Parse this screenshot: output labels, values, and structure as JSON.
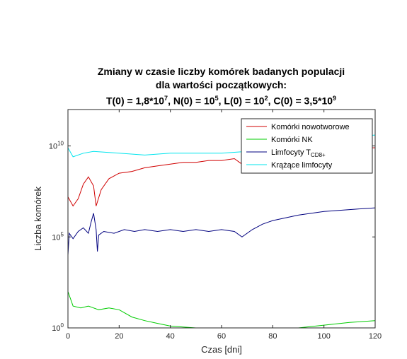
{
  "title": {
    "line1": "Zmiany w czasie liczby komórek badanych populacji",
    "line2": "dla wartości początkowych:",
    "line3": {
      "t_prefix": "T(0) = 1,8*10",
      "t_exp": "7",
      "n_prefix": ", N(0) = 10",
      "n_exp": "5",
      "l_prefix": ", L(0) = 10",
      "l_exp": "2",
      "c_prefix": ", C(0) = 3,5*10",
      "c_exp": "9"
    }
  },
  "chart_data": {
    "type": "line",
    "xlabel": "Czas [dni]",
    "ylabel": "Liczba komórek",
    "xlim": [
      0,
      120
    ],
    "ylim_log10": [
      0,
      12
    ],
    "yscale": "log",
    "xticks": [
      0,
      20,
      40,
      60,
      80,
      100,
      120
    ],
    "yticks": [
      {
        "base": "10",
        "exp": "0",
        "log10": 0
      },
      {
        "base": "10",
        "exp": "5",
        "log10": 5
      },
      {
        "base": "10",
        "exp": "10",
        "log10": 10
      }
    ],
    "legend_position": "top-right",
    "series": [
      {
        "name": "Komórki nowotworowe",
        "color": "#d00000",
        "log10_points": [
          [
            0,
            7.2
          ],
          [
            2,
            6.7
          ],
          [
            4,
            7.1
          ],
          [
            6,
            7.9
          ],
          [
            8,
            8.3
          ],
          [
            10,
            7.8
          ],
          [
            11,
            6.7
          ],
          [
            13,
            7.6
          ],
          [
            16,
            8.2
          ],
          [
            20,
            8.5
          ],
          [
            25,
            8.6
          ],
          [
            30,
            8.8
          ],
          [
            35,
            8.9
          ],
          [
            40,
            9.0
          ],
          [
            45,
            9.1
          ],
          [
            50,
            9.1
          ],
          [
            55,
            9.2
          ],
          [
            60,
            9.2
          ],
          [
            65,
            9.3
          ],
          [
            68,
            9.0
          ],
          [
            72,
            9.5
          ],
          [
            76,
            9.8
          ],
          [
            80,
            9.9
          ],
          [
            90,
            9.9
          ],
          [
            100,
            9.9
          ],
          [
            110,
            9.9
          ],
          [
            120,
            9.9
          ]
        ]
      },
      {
        "name": "Komórki NK",
        "color": "#00cc00",
        "log10_points": [
          [
            0,
            2.0
          ],
          [
            2,
            1.2
          ],
          [
            5,
            1.1
          ],
          [
            8,
            1.2
          ],
          [
            12,
            1.0
          ],
          [
            16,
            1.1
          ],
          [
            20,
            1.0
          ],
          [
            25,
            0.6
          ],
          [
            30,
            0.4
          ],
          [
            35,
            0.25
          ],
          [
            40,
            0.1
          ],
          [
            45,
            0.05
          ],
          [
            50,
            0.0
          ],
          [
            60,
            -0.1
          ],
          [
            70,
            -0.1
          ],
          [
            80,
            -0.1
          ],
          [
            90,
            0.0
          ],
          [
            100,
            0.15
          ],
          [
            110,
            0.3
          ],
          [
            120,
            0.4
          ]
        ]
      },
      {
        "name": "Limfocyty T",
        "name_sub": "CD8+",
        "color": "#00007f",
        "log10_points": [
          [
            0,
            4.0
          ],
          [
            0.5,
            5.2
          ],
          [
            2,
            4.9
          ],
          [
            4,
            5.3
          ],
          [
            6,
            5.5
          ],
          [
            8,
            5.2
          ],
          [
            9,
            5.8
          ],
          [
            10,
            6.3
          ],
          [
            11,
            5.4
          ],
          [
            11.5,
            4.2
          ],
          [
            12,
            5.1
          ],
          [
            14,
            5.3
          ],
          [
            18,
            5.2
          ],
          [
            22,
            5.4
          ],
          [
            26,
            5.3
          ],
          [
            30,
            5.4
          ],
          [
            35,
            5.3
          ],
          [
            40,
            5.4
          ],
          [
            45,
            5.3
          ],
          [
            50,
            5.4
          ],
          [
            55,
            5.3
          ],
          [
            60,
            5.4
          ],
          [
            65,
            5.3
          ],
          [
            68,
            5.0
          ],
          [
            72,
            5.4
          ],
          [
            76,
            5.7
          ],
          [
            80,
            5.9
          ],
          [
            90,
            6.2
          ],
          [
            100,
            6.4
          ],
          [
            110,
            6.5
          ],
          [
            120,
            6.6
          ]
        ]
      },
      {
        "name": "Krążące limfocyty",
        "color": "#00e5ee",
        "log10_points": [
          [
            0,
            9.9
          ],
          [
            2,
            9.4
          ],
          [
            6,
            9.6
          ],
          [
            10,
            9.7
          ],
          [
            20,
            9.6
          ],
          [
            30,
            9.5
          ],
          [
            40,
            9.6
          ],
          [
            50,
            9.6
          ],
          [
            60,
            9.6
          ],
          [
            70,
            9.7
          ],
          [
            80,
            9.7
          ],
          [
            90,
            10.0
          ],
          [
            100,
            10.3
          ],
          [
            110,
            10.5
          ],
          [
            120,
            10.6
          ]
        ]
      }
    ]
  }
}
